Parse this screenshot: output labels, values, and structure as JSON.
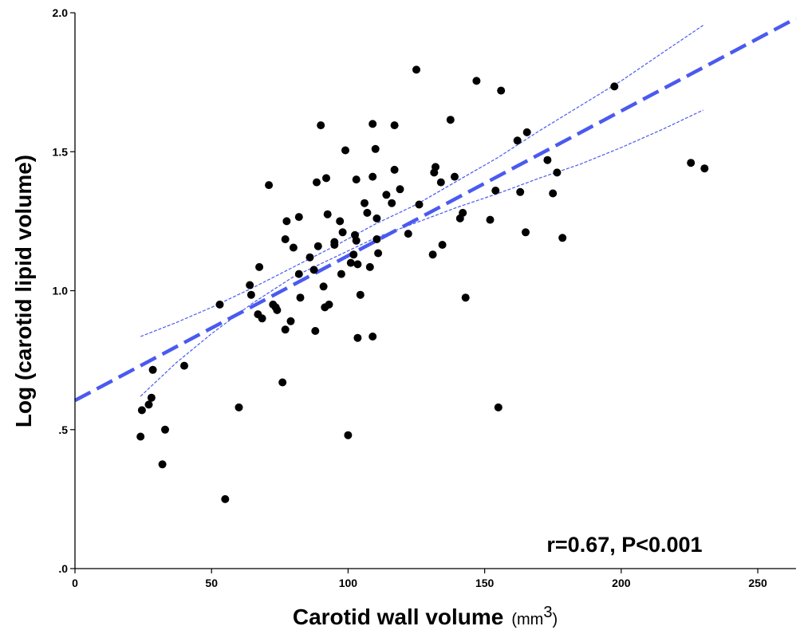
{
  "chart_data": {
    "type": "scatter",
    "title": "",
    "xlabel": "Carotid wall volume",
    "xlabel_unit": "(mm",
    "xlabel_unit_sup": "3",
    "xlabel_unit_close": ")",
    "ylabel": "Log (carotid lipid volume)",
    "xlim": [
      0,
      264
    ],
    "ylim": [
      0,
      2.0
    ],
    "xticks": [
      0,
      50,
      100,
      150,
      200,
      250
    ],
    "xtick_labels": [
      "0",
      "50",
      "100",
      "150",
      "200",
      "250"
    ],
    "yticks": [
      0,
      0.5,
      1.0,
      1.5,
      2.0
    ],
    "ytick_labels": [
      ".0",
      ".5",
      "1.0",
      "1.5",
      "2.0"
    ],
    "grid": false,
    "annotation": "r=0.67, P<0.001",
    "point_color": "#000000",
    "fit_color": "#4a5af0",
    "fit_line": {
      "x": [
        0,
        264
      ],
      "y": [
        0.605,
        1.98
      ]
    },
    "ci_upper": {
      "x": [
        24,
        37,
        50,
        65,
        80,
        95,
        110,
        125,
        140,
        155,
        170,
        185,
        200,
        215,
        230
      ],
      "y": [
        0.835,
        0.885,
        0.94,
        1.01,
        1.085,
        1.16,
        1.24,
        1.31,
        1.395,
        1.48,
        1.575,
        1.665,
        1.755,
        1.855,
        1.955
      ]
    },
    "ci_lower": {
      "x": [
        24,
        37,
        50,
        65,
        80,
        95,
        110,
        125,
        140,
        155,
        170,
        185,
        200,
        215,
        230
      ],
      "y": [
        0.62,
        0.74,
        0.845,
        0.955,
        1.05,
        1.12,
        1.19,
        1.245,
        1.3,
        1.35,
        1.405,
        1.455,
        1.515,
        1.58,
        1.65
      ]
    },
    "points": [
      [
        24,
        0.475
      ],
      [
        24.5,
        0.57
      ],
      [
        27,
        0.59
      ],
      [
        28,
        0.615
      ],
      [
        28.5,
        0.715
      ],
      [
        32,
        0.375
      ],
      [
        33,
        0.5
      ],
      [
        40,
        0.73
      ],
      [
        53,
        0.95
      ],
      [
        55,
        0.25
      ],
      [
        60,
        0.58
      ],
      [
        64,
        1.02
      ],
      [
        64.5,
        0.985
      ],
      [
        67,
        0.915
      ],
      [
        67.5,
        1.085
      ],
      [
        68.5,
        0.9
      ],
      [
        71,
        1.38
      ],
      [
        72.5,
        0.95
      ],
      [
        73.5,
        0.94
      ],
      [
        74,
        0.93
      ],
      [
        76,
        0.67
      ],
      [
        77,
        0.86
      ],
      [
        77.5,
        1.25
      ],
      [
        77,
        1.185
      ],
      [
        79,
        0.89
      ],
      [
        80,
        1.155
      ],
      [
        82,
        1.265
      ],
      [
        82,
        1.06
      ],
      [
        82.5,
        0.975
      ],
      [
        86,
        1.12
      ],
      [
        87.5,
        1.075
      ],
      [
        88,
        0.855
      ],
      [
        88.5,
        1.39
      ],
      [
        89,
        1.16
      ],
      [
        90,
        1.595
      ],
      [
        91,
        1.015
      ],
      [
        91.5,
        0.94
      ],
      [
        92,
        1.405
      ],
      [
        92.5,
        1.275
      ],
      [
        93,
        0.95
      ],
      [
        95,
        1.175
      ],
      [
        95,
        1.165
      ],
      [
        97,
        1.25
      ],
      [
        97.5,
        1.06
      ],
      [
        98,
        1.21
      ],
      [
        99,
        1.505
      ],
      [
        100,
        0.48
      ],
      [
        101,
        1.1
      ],
      [
        102,
        1.13
      ],
      [
        102.5,
        1.2
      ],
      [
        103,
        1.18
      ],
      [
        103,
        1.4
      ],
      [
        103.5,
        1.095
      ],
      [
        103.5,
        0.83
      ],
      [
        104.5,
        0.985
      ],
      [
        106,
        1.315
      ],
      [
        107,
        1.28
      ],
      [
        108,
        1.085
      ],
      [
        109,
        0.835
      ],
      [
        109,
        1.41
      ],
      [
        109,
        1.6
      ],
      [
        110,
        1.51
      ],
      [
        110.5,
        1.26
      ],
      [
        110.5,
        1.185
      ],
      [
        111,
        1.135
      ],
      [
        114,
        1.345
      ],
      [
        116,
        1.315
      ],
      [
        117,
        1.435
      ],
      [
        117,
        1.595
      ],
      [
        119,
        1.365
      ],
      [
        122,
        1.205
      ],
      [
        125,
        1.795
      ],
      [
        126,
        1.31
      ],
      [
        131,
        1.13
      ],
      [
        131.5,
        1.425
      ],
      [
        132,
        1.445
      ],
      [
        134,
        1.39
      ],
      [
        134.5,
        1.165
      ],
      [
        137.5,
        1.615
      ],
      [
        139,
        1.41
      ],
      [
        141,
        1.26
      ],
      [
        142,
        1.28
      ],
      [
        143,
        0.975
      ],
      [
        152,
        1.255
      ],
      [
        154,
        1.36
      ],
      [
        155,
        0.58
      ],
      [
        147,
        1.755
      ],
      [
        156,
        1.72
      ],
      [
        162,
        1.54
      ],
      [
        163,
        1.355
      ],
      [
        165,
        1.21
      ],
      [
        165.5,
        1.57
      ],
      [
        173,
        1.47
      ],
      [
        175,
        1.35
      ],
      [
        176.5,
        1.425
      ],
      [
        178.5,
        1.19
      ],
      [
        197.5,
        1.735
      ],
      [
        225.5,
        1.46
      ],
      [
        230.5,
        1.44
      ]
    ]
  }
}
